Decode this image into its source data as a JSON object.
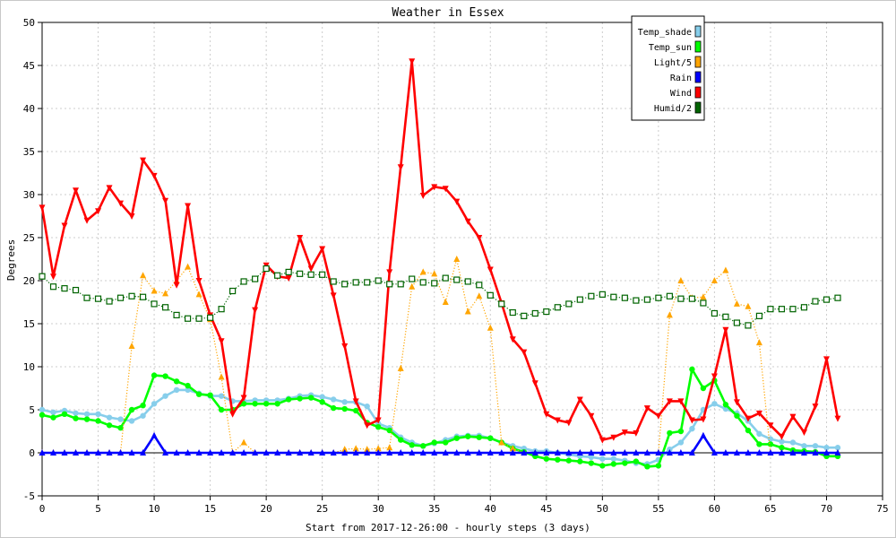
{
  "chart_data": {
    "type": "line",
    "title": "Weather in Essex",
    "xlabel": "Start from 2017-12-26:00 - hourly steps (3 days)",
    "ylabel": "Degrees",
    "xlim": [
      0,
      75
    ],
    "ylim": [
      -5,
      50
    ],
    "xticks": [
      0,
      5,
      10,
      15,
      20,
      25,
      30,
      35,
      40,
      45,
      50,
      55,
      60,
      65,
      70,
      75
    ],
    "yticks": [
      -5,
      0,
      5,
      10,
      15,
      20,
      25,
      30,
      35,
      40,
      45,
      50
    ],
    "grid": true,
    "legend_position": "top-right",
    "series": [
      {
        "name": "Temp_shade",
        "color": "#87ceeb",
        "marker": "circle",
        "line": "solid",
        "values": [
          5,
          4.7,
          4.9,
          4.6,
          4.5,
          4.5,
          4.1,
          3.9,
          3.7,
          4.3,
          5.7,
          6.6,
          7.3,
          7.3,
          6.9,
          6.6,
          6.6,
          6.0,
          6.0,
          6.1,
          6.1,
          6.1,
          6.3,
          6.6,
          6.7,
          6.5,
          6.2,
          5.9,
          5.9,
          5.4,
          3.4,
          2.9,
          1.8,
          1.2,
          0.8,
          1.1,
          1.5,
          1.9,
          2.0,
          2.0,
          1.7,
          1.2,
          0.8,
          0.5,
          0.2,
          0.2,
          0.0,
          -0.2,
          -0.4,
          -0.5,
          -0.7,
          -0.7,
          -0.9,
          -1.2,
          -1.3,
          -0.8,
          0.4,
          1.2,
          2.8,
          5.0,
          5.7,
          5.1,
          4.6,
          3.7,
          2.2,
          1.6,
          1.3,
          1.2,
          0.8,
          0.8,
          0.6,
          0.6
        ]
      },
      {
        "name": "Temp_sun",
        "color": "#00ff00",
        "marker": "circle",
        "line": "solid",
        "values": [
          4.4,
          4.1,
          4.5,
          4.0,
          3.9,
          3.7,
          3.2,
          2.9,
          5.0,
          5.5,
          9.0,
          8.9,
          8.3,
          7.8,
          6.8,
          6.7,
          5.0,
          5.0,
          5.7,
          5.7,
          5.7,
          5.7,
          6.2,
          6.3,
          6.4,
          5.9,
          5.2,
          5.1,
          4.9,
          3.5,
          3.0,
          2.6,
          1.5,
          0.9,
          0.8,
          1.2,
          1.2,
          1.7,
          1.9,
          1.8,
          1.7,
          1.2,
          0.5,
          0.1,
          -0.4,
          -0.7,
          -0.8,
          -0.9,
          -1.0,
          -1.2,
          -1.5,
          -1.3,
          -1.2,
          -1.0,
          -1.6,
          -1.5,
          2.3,
          2.5,
          9.7,
          7.5,
          8.4,
          5.6,
          4.3,
          2.6,
          1.0,
          1.0,
          0.6,
          0.3,
          0.2,
          0.1,
          -0.4,
          -0.4
        ]
      },
      {
        "name": "Light/5",
        "color": "#ffa500",
        "marker": "triangle-up",
        "line": "dotted",
        "values": [
          0,
          0,
          0,
          0,
          0,
          0,
          0,
          0,
          12.4,
          20.6,
          18.8,
          18.5,
          20.0,
          21.6,
          18.4,
          15.5,
          8.8,
          0,
          1.2,
          0,
          0,
          0,
          0,
          0,
          0,
          0,
          0,
          0.4,
          0.5,
          0.4,
          0.5,
          0.6,
          9.8,
          19.3,
          21.0,
          20.8,
          17.5,
          22.5,
          16.4,
          18.2,
          14.5,
          1.2,
          0.5,
          0,
          0,
          0,
          0,
          0,
          0,
          0,
          0,
          0,
          0,
          0,
          0,
          0,
          16.0,
          20.0,
          18.0,
          18.1,
          20.0,
          21.2,
          17.3,
          17.0,
          12.8,
          0,
          0,
          0,
          0,
          0,
          0,
          0
        ]
      },
      {
        "name": "Rain",
        "color": "#0000ff",
        "marker": "triangle-up",
        "line": "solid",
        "values": [
          0,
          0,
          0,
          0,
          0,
          0,
          0,
          0,
          0,
          0,
          2.0,
          0,
          0,
          0,
          0,
          0,
          0,
          0,
          0,
          0,
          0,
          0,
          0,
          0,
          0,
          0,
          0,
          0,
          0,
          0,
          0,
          0,
          0,
          0,
          0,
          0,
          0,
          0,
          0,
          0,
          0,
          0,
          0,
          0,
          0,
          0,
          0,
          0,
          0,
          0,
          0,
          0,
          0,
          0,
          0,
          0,
          0,
          0,
          0,
          2.0,
          0,
          0,
          0,
          0,
          0,
          0,
          0,
          0,
          0,
          0,
          0,
          0
        ]
      },
      {
        "name": "Wind",
        "color": "#ff0000",
        "marker": "triangle-down",
        "line": "solid",
        "values": [
          28.5,
          20.5,
          26.4,
          30.5,
          27.0,
          28.1,
          30.8,
          29.0,
          27.5,
          34.0,
          32.2,
          29.3,
          19.5,
          28.7,
          20.0,
          16.0,
          13.0,
          4.5,
          6.4,
          16.6,
          21.8,
          20.5,
          20.3,
          25.0,
          21.4,
          23.7,
          18.3,
          12.4,
          6.0,
          3.2,
          3.8,
          21.0,
          33.2,
          45.5,
          29.9,
          30.9,
          30.7,
          29.2,
          26.9,
          25.0,
          21.3,
          17.4,
          13.2,
          11.7,
          8.1,
          4.5,
          3.8,
          3.5,
          6.2,
          4.3,
          1.5,
          1.8,
          2.4,
          2.3,
          5.2,
          4.3,
          6.0,
          6.0,
          3.8,
          3.9,
          8.9,
          14.3,
          5.9,
          4.0,
          4.6,
          3.2,
          1.9,
          4.2,
          2.4,
          5.4,
          10.9,
          4.0
        ]
      },
      {
        "name": "Humid/2",
        "color": "#006400",
        "marker": "square",
        "line": "dotted",
        "values": [
          20.5,
          19.3,
          19.1,
          18.9,
          18.0,
          17.9,
          17.6,
          18.0,
          18.2,
          18.1,
          17.3,
          16.9,
          16.0,
          15.6,
          15.6,
          15.7,
          16.7,
          18.8,
          19.9,
          20.2,
          21.4,
          20.6,
          21.0,
          20.8,
          20.7,
          20.7,
          19.9,
          19.6,
          19.8,
          19.8,
          20.0,
          19.6,
          19.6,
          20.2,
          19.8,
          19.7,
          20.3,
          20.1,
          19.9,
          19.5,
          18.3,
          17.3,
          16.3,
          15.9,
          16.2,
          16.4,
          16.9,
          17.3,
          17.8,
          18.2,
          18.4,
          18.1,
          18.0,
          17.7,
          17.8,
          18.0,
          18.2,
          17.9,
          17.9,
          17.4,
          16.2,
          15.8,
          15.1,
          14.8,
          15.9,
          16.7,
          16.7,
          16.7,
          16.9,
          17.6,
          17.8,
          18.0
        ]
      }
    ]
  }
}
